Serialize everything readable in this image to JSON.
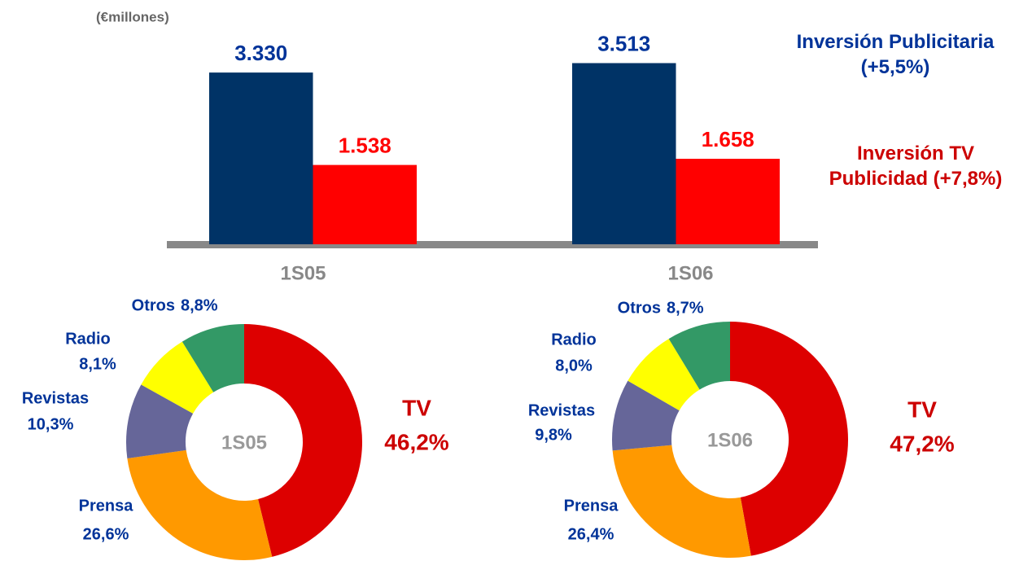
{
  "chart_data": [
    {
      "type": "bar",
      "y_label": "(€millones)",
      "categories": [
        "1S05",
        "1S06"
      ],
      "ylim": [
        0,
        3600
      ],
      "series": [
        {
          "name": "Inversión Publicitaria (+5,5%)",
          "color": "#003366",
          "values": [
            3330,
            3513
          ],
          "value_labels": [
            "3.330",
            "3.513"
          ]
        },
        {
          "name": "Inversión TV Publicidad (+7,8%)",
          "color": "#ff0000",
          "values": [
            1538,
            1658
          ],
          "value_labels": [
            "1.538",
            "1.658"
          ]
        }
      ]
    },
    {
      "type": "donut",
      "center_label": "1S05",
      "categories": [
        "TV",
        "Prensa",
        "Revistas",
        "Radio",
        "Otros"
      ],
      "values": [
        46.2,
        26.6,
        10.3,
        8.1,
        8.8
      ],
      "value_labels": [
        "46,2%",
        "26,6%",
        "10,3%",
        "8,1%",
        "8,8%"
      ],
      "colors": [
        "#dd0000",
        "#ff9900",
        "#666699",
        "#ffff00",
        "#339966"
      ]
    },
    {
      "type": "donut",
      "center_label": "1S06",
      "categories": [
        "TV",
        "Prensa",
        "Revistas",
        "Radio",
        "Otros"
      ],
      "values": [
        47.2,
        26.4,
        9.8,
        8.0,
        8.7
      ],
      "value_labels": [
        "47,2%",
        "26,4%",
        "9,8%",
        "8,0%",
        "8,7%"
      ],
      "colors": [
        "#dd0000",
        "#ff9900",
        "#666699",
        "#ffff00",
        "#339966"
      ]
    }
  ]
}
